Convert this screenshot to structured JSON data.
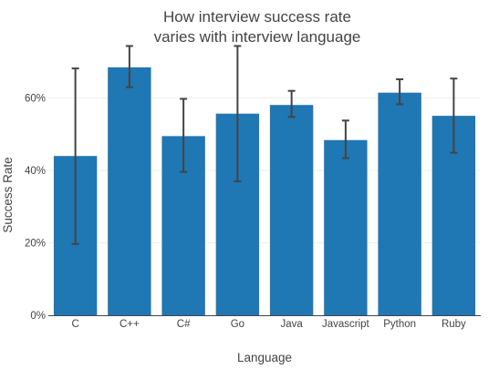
{
  "chart_data": {
    "type": "bar",
    "title_lines": [
      "How interview success rate",
      "varies with interview language"
    ],
    "xlabel": "Language",
    "ylabel": "Success Rate",
    "categories": [
      "C",
      "C++",
      "C#",
      "Go",
      "Java",
      "Javascript",
      "Python",
      "Ruby"
    ],
    "values": [
      0.44,
      0.685,
      0.495,
      0.557,
      0.581,
      0.484,
      0.615,
      0.551
    ],
    "error_low": [
      0.197,
      0.63,
      0.396,
      0.37,
      0.548,
      0.434,
      0.583,
      0.449
    ],
    "error_high": [
      0.682,
      0.744,
      0.598,
      0.744,
      0.62,
      0.538,
      0.652,
      0.654
    ],
    "ylim": [
      0,
      0.72
    ],
    "y_ticks": [
      {
        "value": 0,
        "label": "0%"
      },
      {
        "value": 0.2,
        "label": "20%"
      },
      {
        "value": 0.4,
        "label": "40%"
      },
      {
        "value": 0.6,
        "label": "60%"
      }
    ],
    "grid": true,
    "bar_color": "#1f77b4",
    "error_bar_color": "#444444",
    "grid_color": "#eeeeee"
  }
}
